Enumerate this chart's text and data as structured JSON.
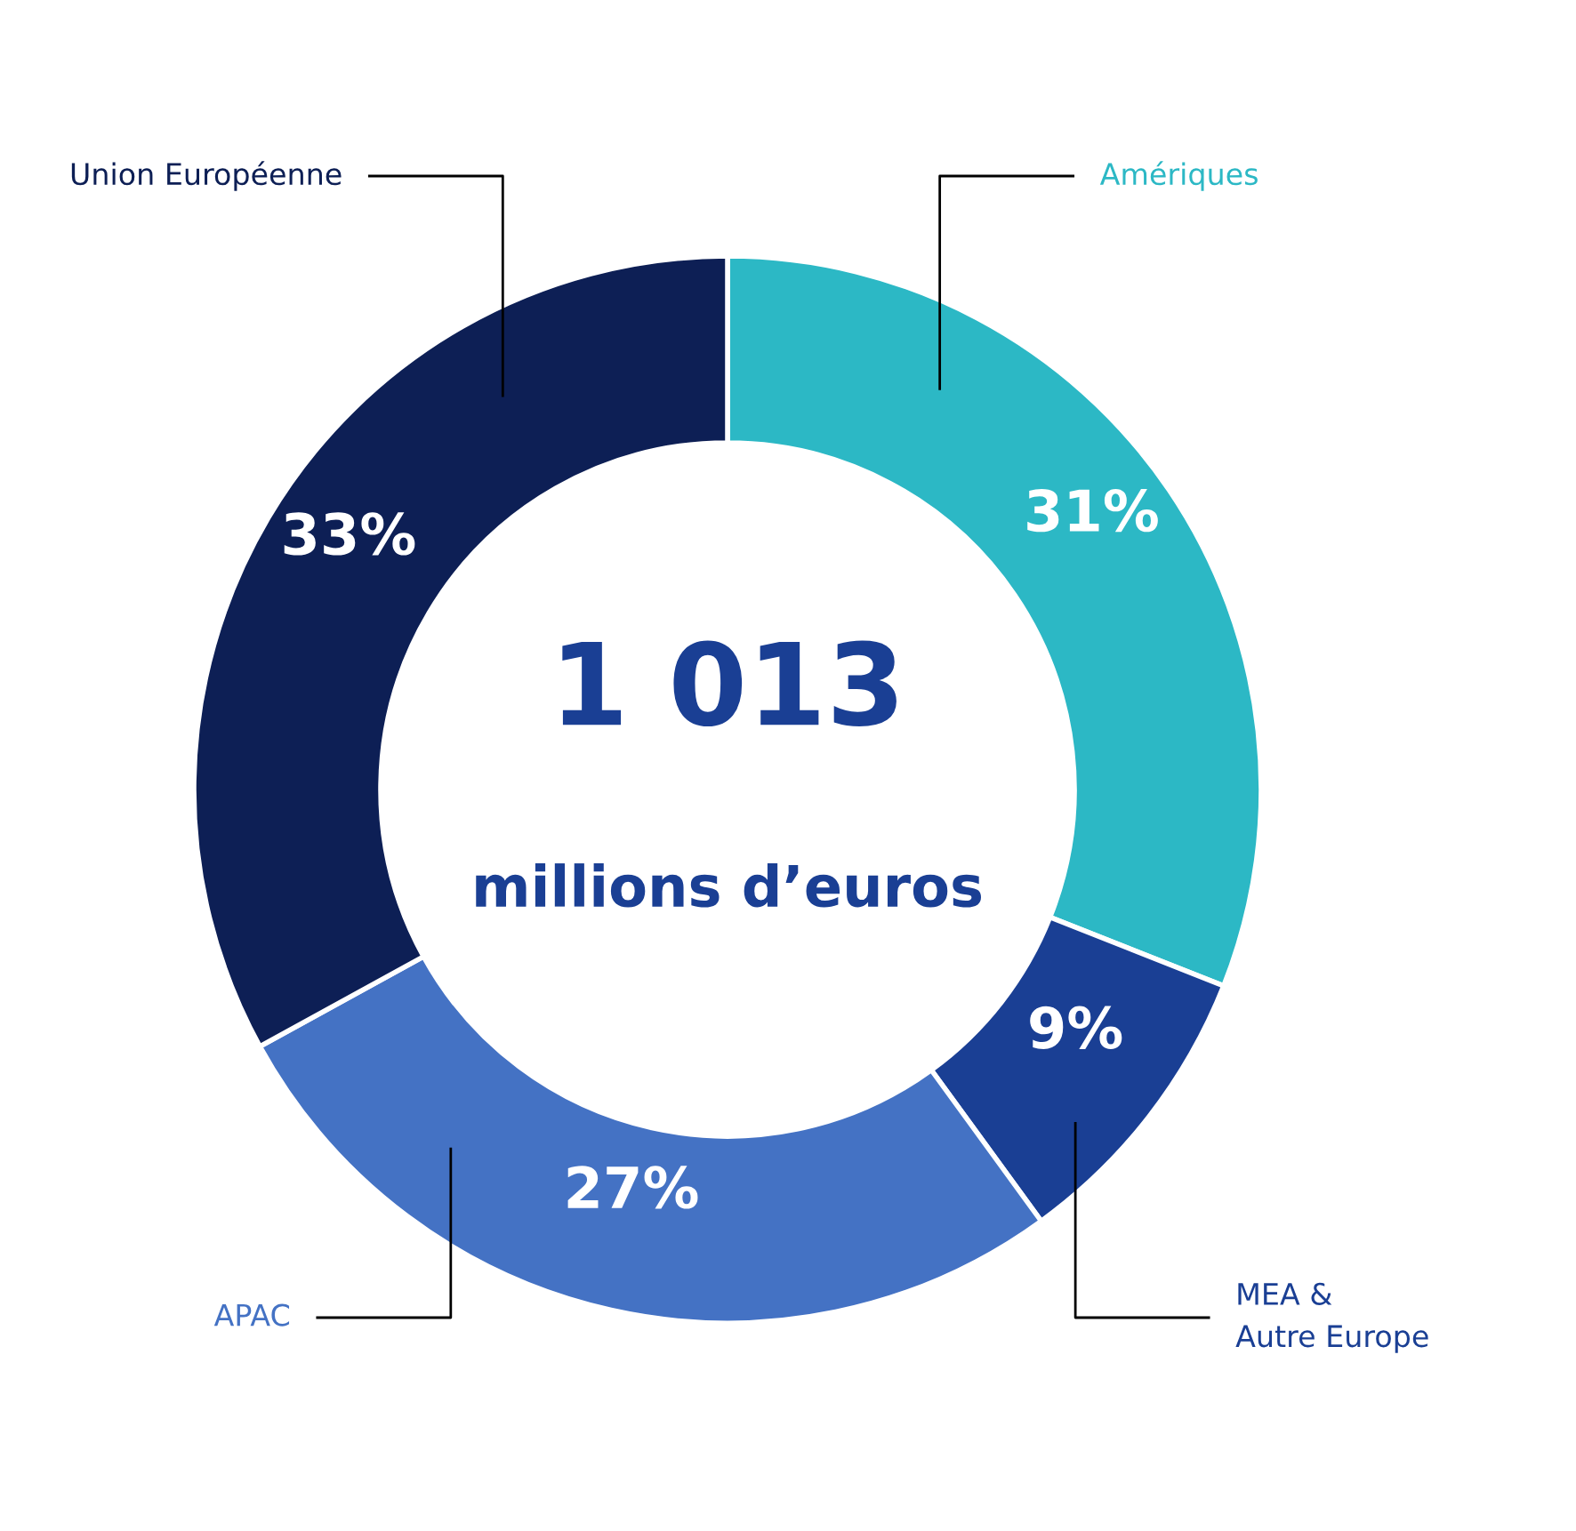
{
  "chart_data": {
    "type": "donut",
    "categories": [
      "Amériques",
      "MEA &\nAutre Europe",
      "APAC",
      "Union Européenne"
    ],
    "values": [
      31,
      9,
      27,
      33
    ],
    "colors": [
      "#2cb8c5",
      "#1a3f94",
      "#4472c4",
      "#0d1f55"
    ],
    "value_labels": [
      "31%",
      "9%",
      "27%",
      "33%"
    ],
    "annotations": [
      "1 013",
      "millions d’euros"
    ],
    "legend": false
  }
}
